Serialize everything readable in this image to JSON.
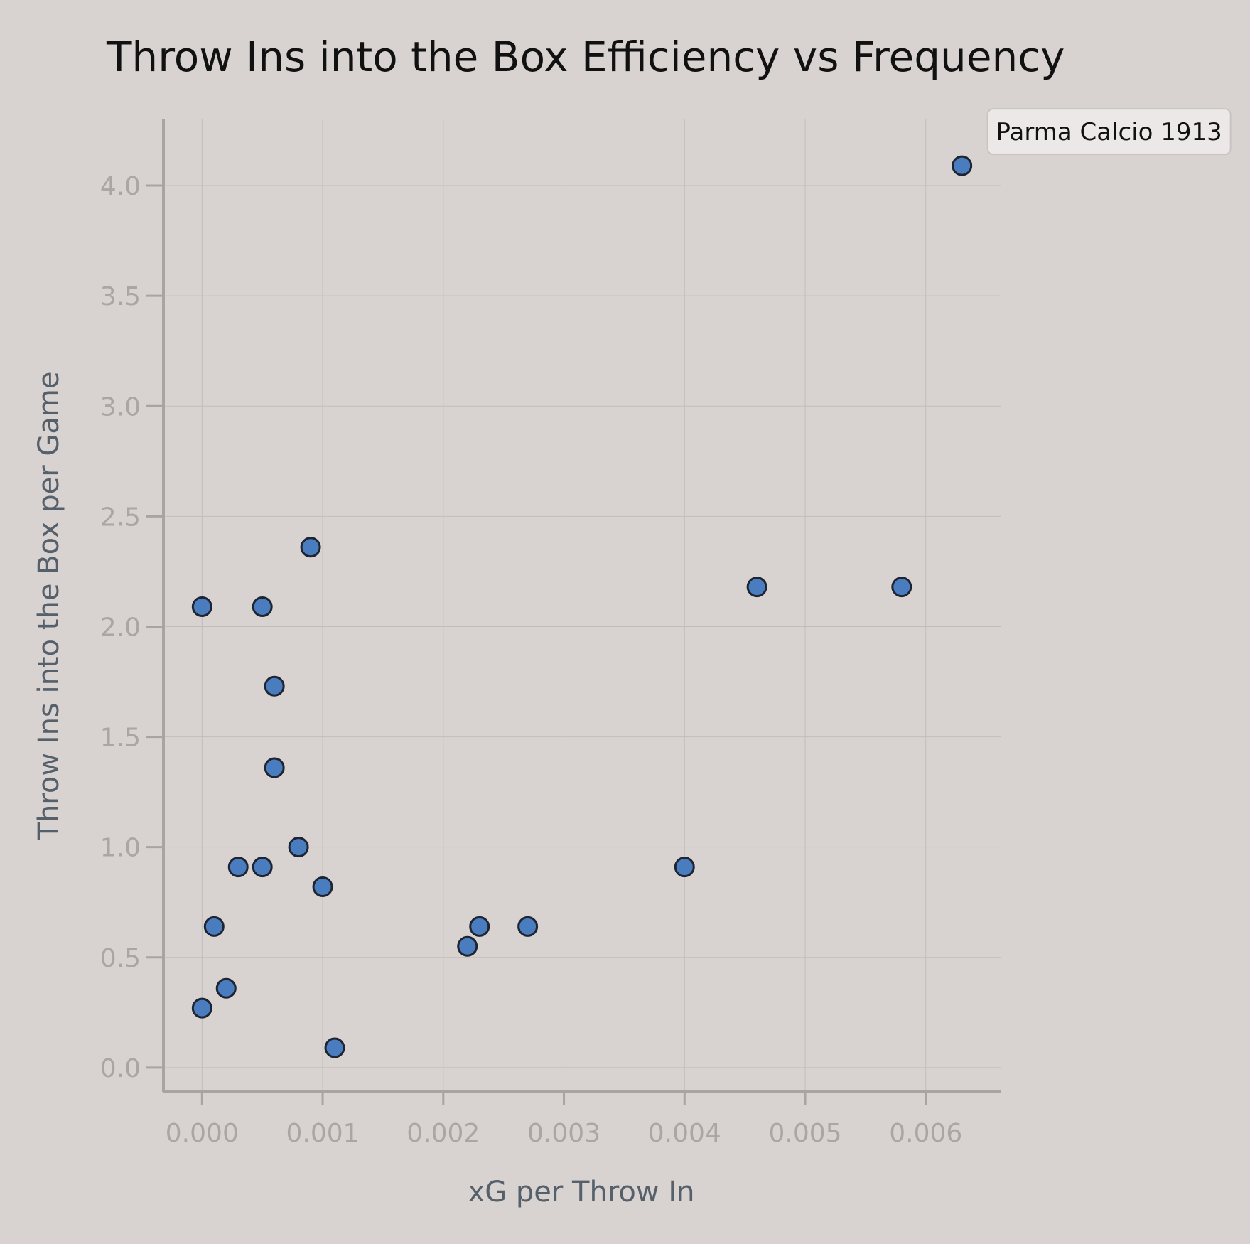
{
  "chart_data": {
    "type": "scatter",
    "title": "Throw Ins into the Box Efficiency vs Frequency",
    "xlabel": "xG per Throw In",
    "ylabel": "Throw Ins into the Box per Game",
    "xlim": [
      -0.00032,
      0.00662
    ],
    "ylim": [
      -0.11,
      4.3
    ],
    "x_ticks": [
      0.0,
      0.001,
      0.002,
      0.003,
      0.004,
      0.005,
      0.006
    ],
    "x_tick_labels": [
      "0.000",
      "0.001",
      "0.002",
      "0.003",
      "0.004",
      "0.005",
      "0.006"
    ],
    "y_ticks": [
      0.0,
      0.5,
      1.0,
      1.5,
      2.0,
      2.5,
      3.0,
      3.5,
      4.0
    ],
    "y_tick_labels": [
      "0.0",
      "0.5",
      "1.0",
      "1.5",
      "2.0",
      "2.5",
      "3.0",
      "3.5",
      "4.0"
    ],
    "grid": true,
    "points": [
      {
        "x": 0.0063,
        "y": 4.09
      },
      {
        "x": 0.0009,
        "y": 2.36
      },
      {
        "x": 0.0046,
        "y": 2.18
      },
      {
        "x": 0.0058,
        "y": 2.18
      },
      {
        "x": 0.0,
        "y": 2.09
      },
      {
        "x": 0.0005,
        "y": 2.09
      },
      {
        "x": 0.0006,
        "y": 1.73
      },
      {
        "x": 0.0006,
        "y": 1.36
      },
      {
        "x": 0.0008,
        "y": 1.0
      },
      {
        "x": 0.0003,
        "y": 0.91
      },
      {
        "x": 0.0005,
        "y": 0.91
      },
      {
        "x": 0.004,
        "y": 0.91
      },
      {
        "x": 0.001,
        "y": 0.82
      },
      {
        "x": 0.0001,
        "y": 0.64
      },
      {
        "x": 0.0023,
        "y": 0.64
      },
      {
        "x": 0.0027,
        "y": 0.64
      },
      {
        "x": 0.0022,
        "y": 0.55
      },
      {
        "x": 0.0002,
        "y": 0.36
      },
      {
        "x": 0.0,
        "y": 0.27
      },
      {
        "x": 0.0011,
        "y": 0.09
      }
    ],
    "annotations": [
      {
        "text": "Parma Calcio 1913",
        "x": 0.0063,
        "y": 4.09
      }
    ],
    "colors": {
      "background": "#d8d3d1",
      "marker_fill": "#4a7cc0",
      "marker_edge": "#1e2430",
      "grid": "#c2bdbb",
      "spine": "#a8a4a2",
      "tick_text": "#aaa6a4",
      "axis_label": "#56606b",
      "title": "#111111",
      "annotation_bg": "#ebe8e7",
      "annotation_border": "#c8c4c2"
    }
  }
}
